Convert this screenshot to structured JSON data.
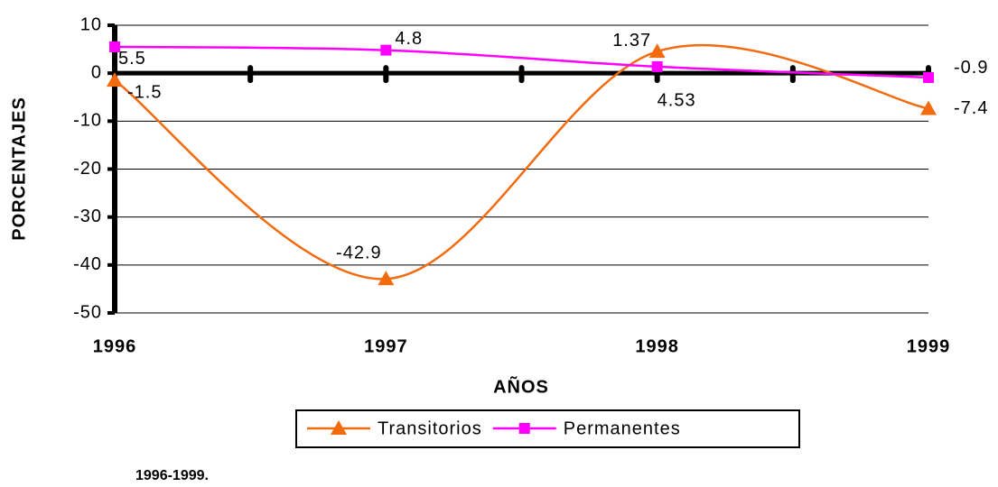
{
  "chart_data": {
    "type": "line",
    "categories": [
      "1996",
      "1997",
      "1998",
      "1999"
    ],
    "series": [
      {
        "name": "Transitorios",
        "color": "#f26b0f",
        "marker": "triangle",
        "smooth": true,
        "values": [
          -1.5,
          -42.9,
          4.53,
          -7.4
        ]
      },
      {
        "name": "Permanentes",
        "color": "#ff00ff",
        "marker": "square",
        "smooth": true,
        "values": [
          5.5,
          4.8,
          1.37,
          -0.9
        ]
      }
    ],
    "ylim": [
      -50,
      10
    ],
    "yticks": [
      -50,
      -40,
      -30,
      -20,
      -10,
      0,
      10
    ],
    "ylabel": "PORCENTAJES",
    "xlabel": "AÑOS",
    "grid": true,
    "legend": "bottom",
    "caption": "1996-1999."
  }
}
